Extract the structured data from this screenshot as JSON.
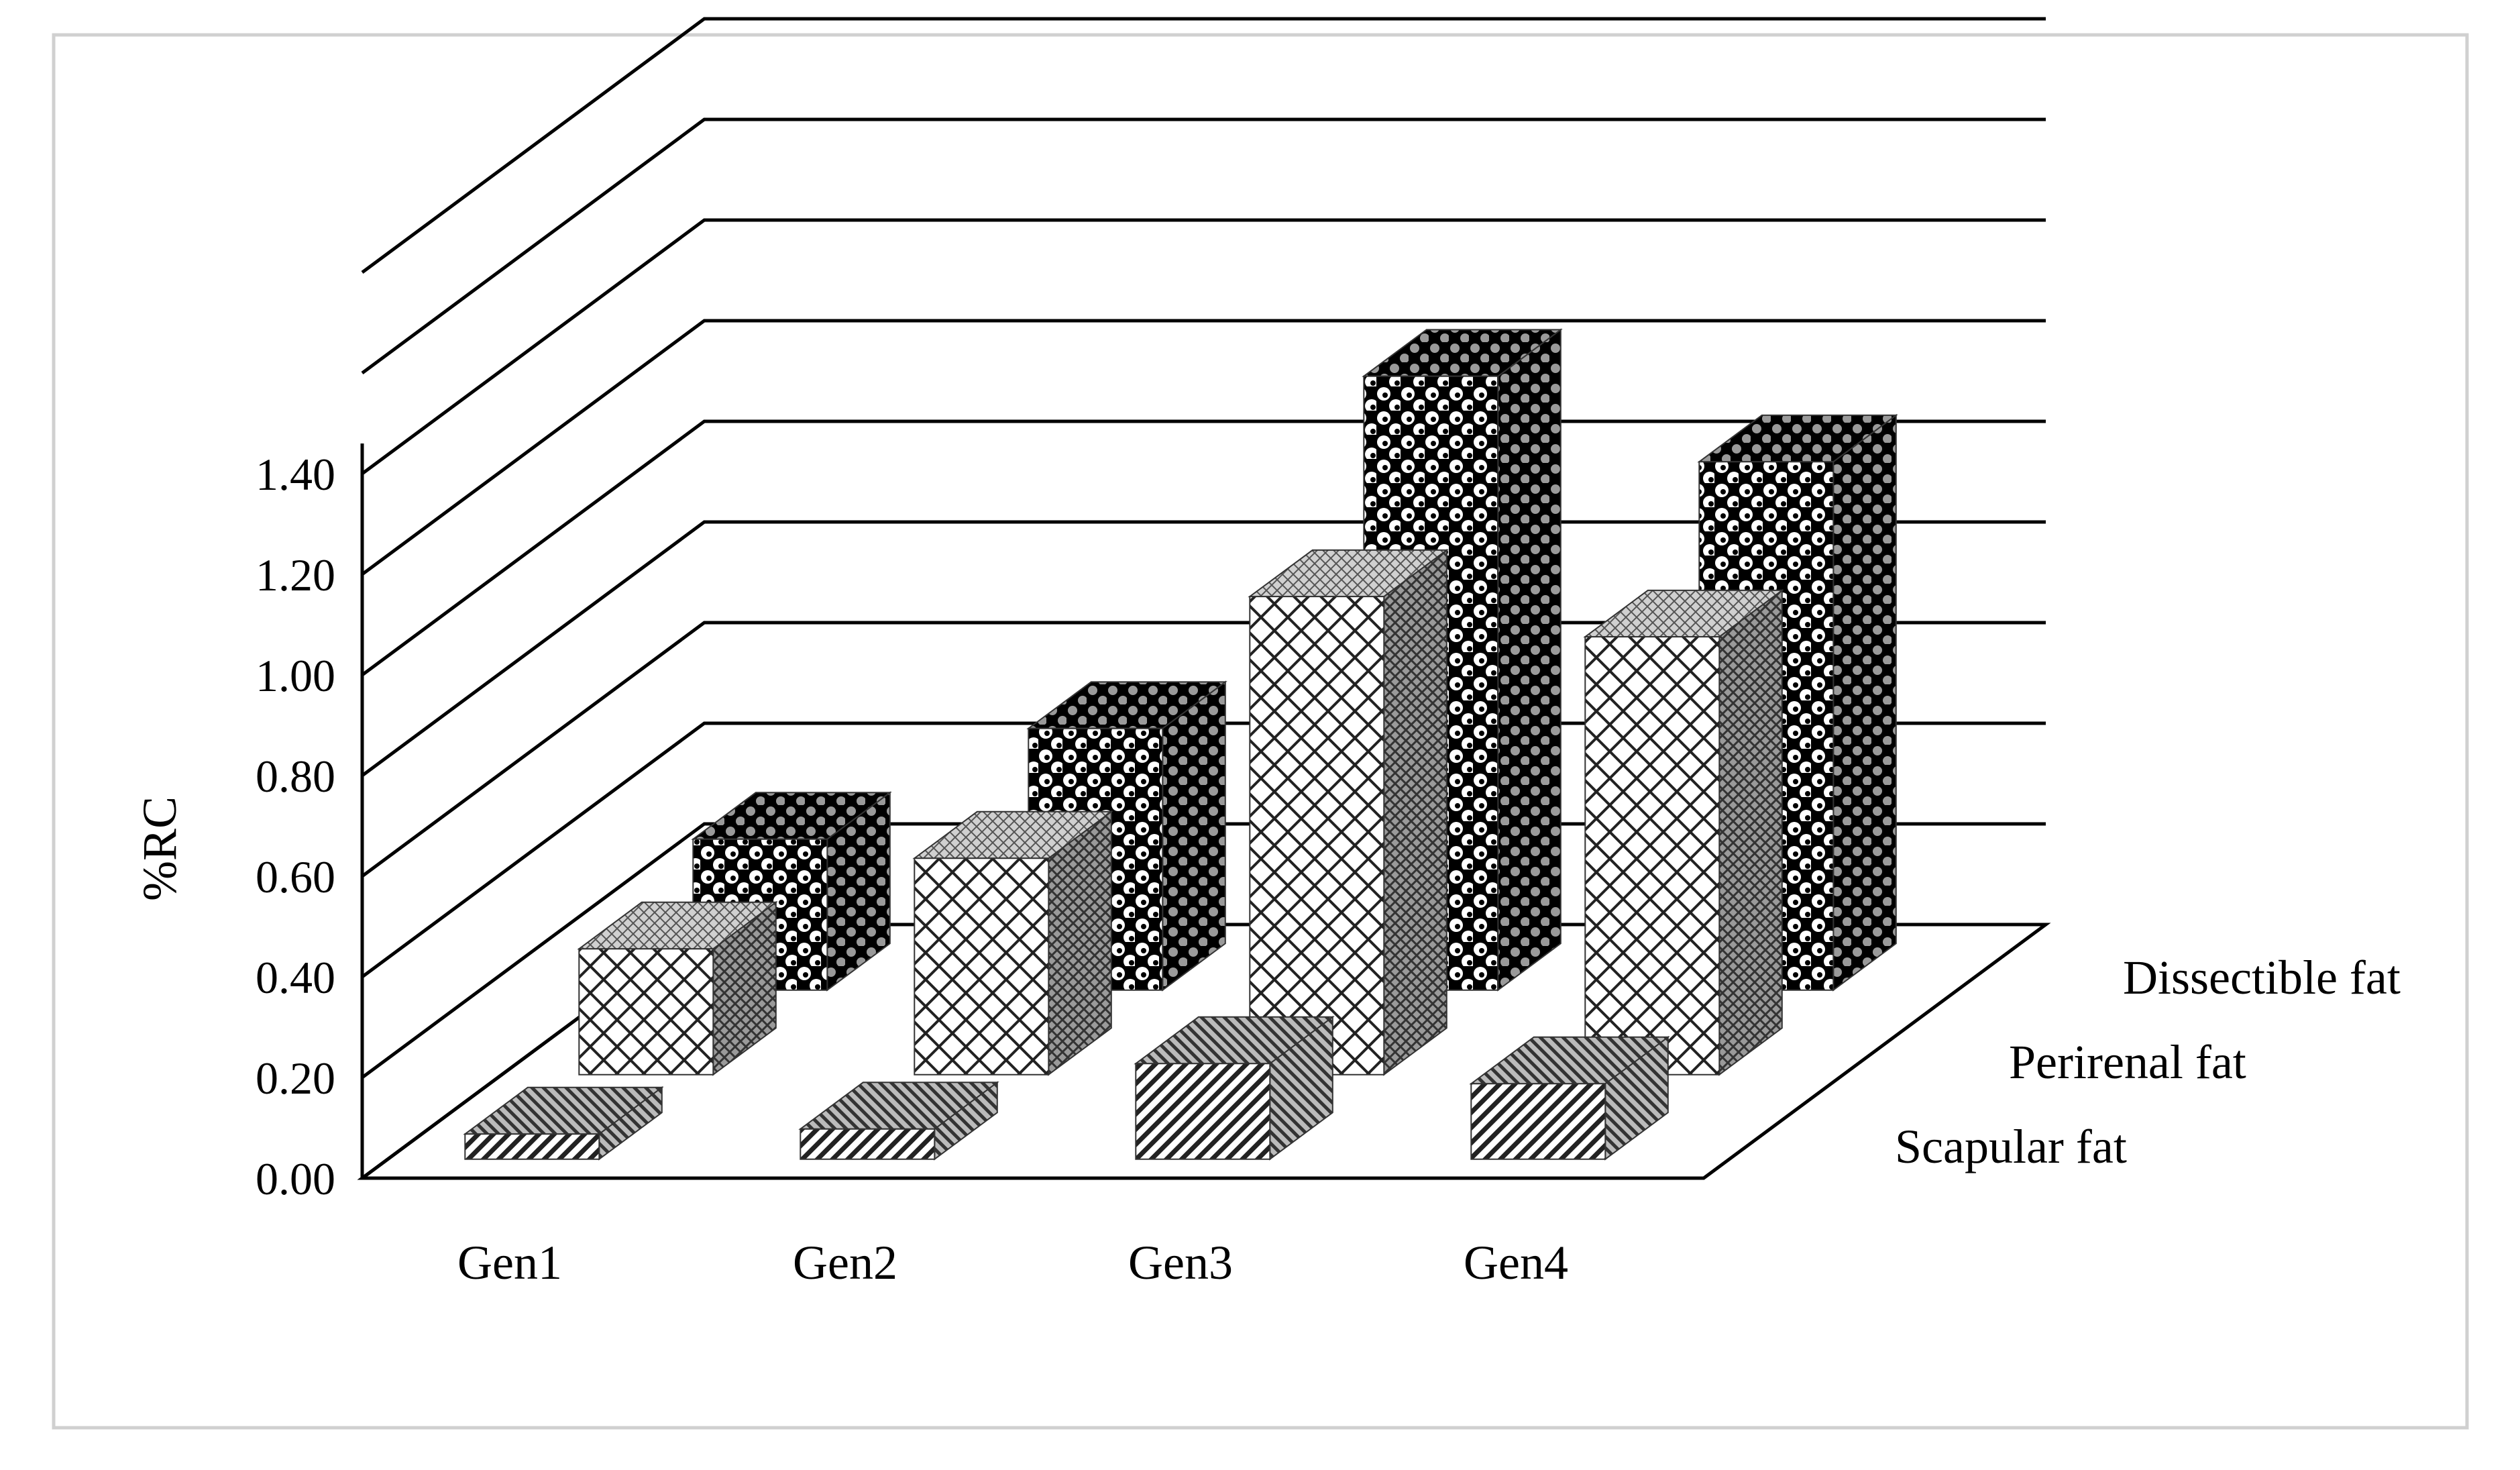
{
  "chart_data": {
    "type": "bar",
    "variant": "3d-column",
    "title": "",
    "xlabel": "",
    "ylabel": "%RC",
    "ylim": [
      0,
      1.4
    ],
    "yticks": [
      "0.00",
      "0.20",
      "0.40",
      "0.60",
      "0.80",
      "1.00",
      "1.20",
      "1.40"
    ],
    "grid": true,
    "categories": [
      "Gen1",
      "Gen2",
      "Gen3",
      "Gen4"
    ],
    "series": [
      {
        "name": "Scapular fat",
        "values": [
          0.05,
          0.06,
          0.19,
          0.15
        ],
        "pattern": "diagonal-stripes"
      },
      {
        "name": "Perirenal fat",
        "values": [
          0.25,
          0.43,
          0.95,
          0.87
        ],
        "pattern": "crosshatch"
      },
      {
        "name": "Dissectible fat",
        "values": [
          0.3,
          0.52,
          1.22,
          1.05
        ],
        "pattern": "dots"
      }
    ]
  }
}
